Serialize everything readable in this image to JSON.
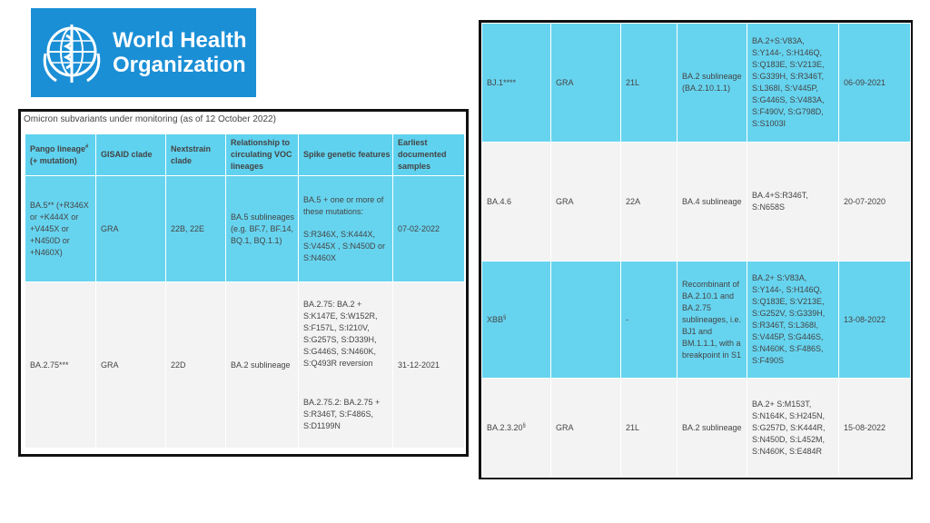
{
  "logo": {
    "line1": "World Health",
    "line2": "Organization"
  },
  "left_table": {
    "caption": "Omicron subvariants under monitoring (as of 12 October 2022)",
    "headers": {
      "pango_main": "Pango lineage",
      "pango_sup": "#",
      "pango_sub": "(+ mutation)",
      "gisaid": "GISAID clade",
      "nextstrain": "Nextstrain clade",
      "relationship": "Relationship to circulating VOC lineages",
      "spike": "Spike genetic features",
      "earliest": "Earliest documented samples"
    },
    "rows": [
      {
        "pango": "BA.5** (+R346X or +K444X or +V445X or +N450D or +N460X)",
        "gisaid": "GRA",
        "nextstrain": "22B, 22E",
        "relationship": "BA.5 sublineages (e.g. BF.7, BF.14, BQ.1, BQ.1.1)",
        "spike_1": "BA.5 + one or more of these mutations:",
        "spike_2": "S:R346X, S:K444X, S:V445X , S:N450D or S:N460X",
        "earliest": "07-02-2022"
      },
      {
        "pango": "BA.2.75***",
        "gisaid": "GRA",
        "nextstrain": "22D",
        "relationship": "BA.2 sublineage",
        "spike_1": "BA.2.75: BA.2 + S:K147E, S:W152R, S:F157L, S:I210V, S:G257S, S:D339H, S:G446S, S:N460K, S:Q493R reversion",
        "spike_2": "BA.2.75.2: BA.2.75 + S:R346T, S:F486S, S:D1199N",
        "earliest": "31-12-2021"
      }
    ]
  },
  "right_table": {
    "rows": [
      {
        "pango": "BJ.1****",
        "pango_sup": "",
        "gisaid": "GRA",
        "nextstrain": "21L",
        "relationship": "BA.2 sublineage (BA.2.10.1.1)",
        "spike": "BA.2+S:V83A, S:Y144-, S:H146Q, S:Q183E, S:V213E, S:G339H, S:R346T, S:L368I, S:V445P, S:G446S, S:V483A, S:F490V, S:G798D, S:S1003I",
        "earliest": "06-09-2021"
      },
      {
        "pango": "BA.4.6",
        "pango_sup": "",
        "gisaid": "GRA",
        "nextstrain": "22A",
        "relationship": "BA.4 sublineage",
        "spike": "BA.4+S:R346T, S:N658S",
        "earliest": "20-07-2020"
      },
      {
        "pango": "XBB",
        "pango_sup": "§",
        "gisaid": "",
        "nextstrain": "-",
        "relationship": "Recombinant of BA.2.10.1 and BA.2.75 sublineages, i.e. BJ1 and BM.1.1.1, with a breakpoint in S1",
        "spike": "BA.2+ S:V83A, S:Y144-, S:H146Q, S:Q183E, S:V213E, S:G252V, S:G339H, S:R346T, S:L368I, S:V445P, S:G446S, S:N460K, S:F486S, S:F490S",
        "earliest": "13-08-2022"
      },
      {
        "pango": "BA.2.3.20",
        "pango_sup": "§",
        "gisaid": "GRA",
        "nextstrain": "21L",
        "relationship": "BA.2 sublineage",
        "spike": "BA.2+ S:M153T, S:N164K, S:H245N, S:G257D, S:K444R, S:N450D, S:L452M, S:N460K, S:E484R",
        "earliest": "15-08-2022"
      }
    ]
  }
}
